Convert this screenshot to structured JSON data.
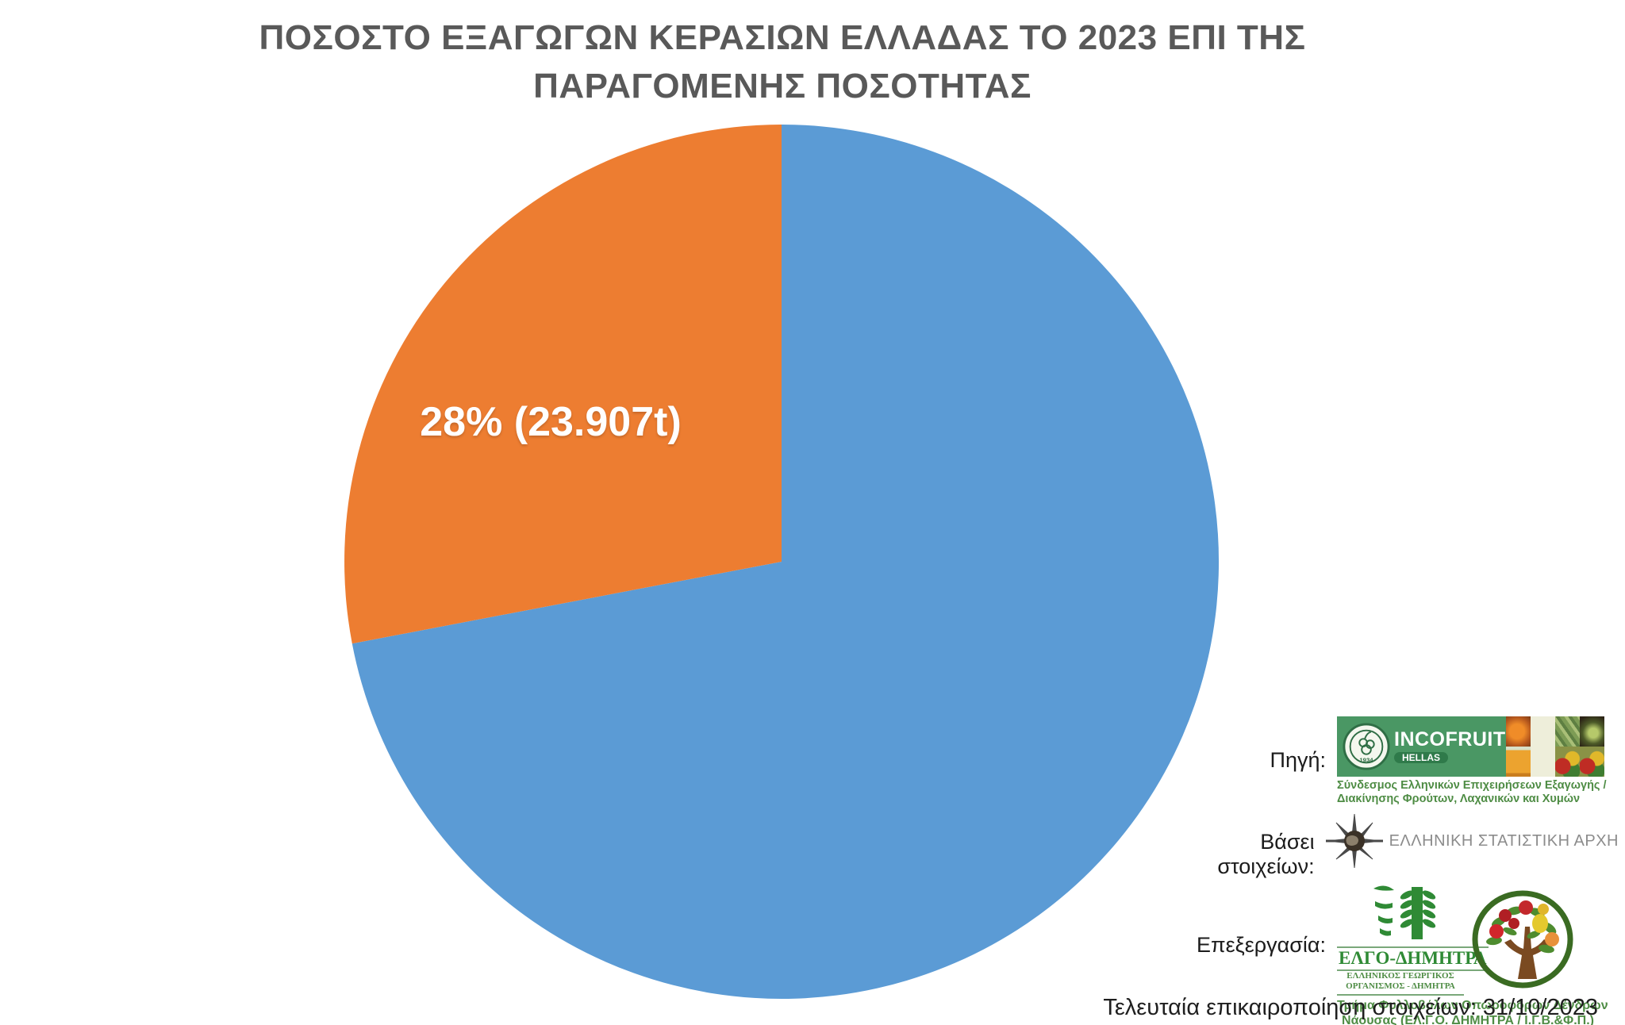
{
  "chart_data": {
    "type": "pie",
    "title": "ΠΟΣΟΣΤΟ ΕΞΑΓΩΓΩΝ ΚΕΡΑΣΙΩΝ ΕΛΛΑΔΑΣ ΤΟ 2023 ΕΠΙ ΤΗΣ ΠΑΡΑΓΟΜΕΝΗΣ ΠΟΣΟΤΗΤΑΣ",
    "start_angle_deg": -90,
    "direction": "clockwise",
    "legend": "none",
    "slices": [
      {
        "value": 72,
        "color": "#5B9BD5",
        "label": ""
      },
      {
        "value": 28,
        "color": "#ED7D31",
        "label": "28% (23.907t)"
      }
    ]
  },
  "credits": {
    "source_label": "Πηγή:",
    "incofruit": {
      "name": "INCOFRUIT",
      "sub": "HELLAS",
      "emblem_year": "1934",
      "desc1": "Σύνδεσμος Ελληνικών Επιχειρήσεων Εξαγωγής /",
      "desc2": "Διακίνησης Φρούτων, Λαχανικών και Χυμών"
    },
    "based_on_label": "Βάσει στοιχείων:",
    "elstat": {
      "name": "ΕΛΛΗΝΙΚΗ ΣΤΑΤΙΣΤΙΚΗ ΑΡΧΗ"
    },
    "processing_label": "Επεξεργασία:",
    "elgo": {
      "name": "ΕΛΓΟ-ΔΗΜΗΤΡΑ",
      "sub1": "ΕΛΛΗΝΙΚΟΣ ΓΕΩΡΓΙΚΟΣ",
      "sub2": "ΟΡΓΑΝΙΣΜΟΣ - ΔΗΜΗΤΡΑ",
      "dept1": "Τμήμα Φυλλοβόλων Οπωροφόρων Δένδρων",
      "dept2": "Νάουσας (ΕΛ.Γ.Ο. ΔΗΜΗΤΡΑ / Ι.Γ.Β.&Φ.Π.)"
    },
    "last_update": "Τελευταία επικαιροποίηση στοιχείων: 31/10/2023"
  },
  "colors": {
    "slice_blue": "#5B9BD5",
    "slice_orange": "#ED7D31",
    "title_gray": "#595959",
    "incofruit_green": "#4a9764",
    "credit_green": "#4e8c44",
    "elstat_gray": "#8c8c8c"
  },
  "icons": {
    "incofruit_emblem": "incofruit-emblem-icon",
    "fruit_tiles": "fruit-photo-tiles-icon",
    "elstat_globe": "elstat-compass-globe-icon",
    "elgo_pictogram": "elgo-wheat-face-icon",
    "fruit_tree": "fruit-tree-icon"
  }
}
